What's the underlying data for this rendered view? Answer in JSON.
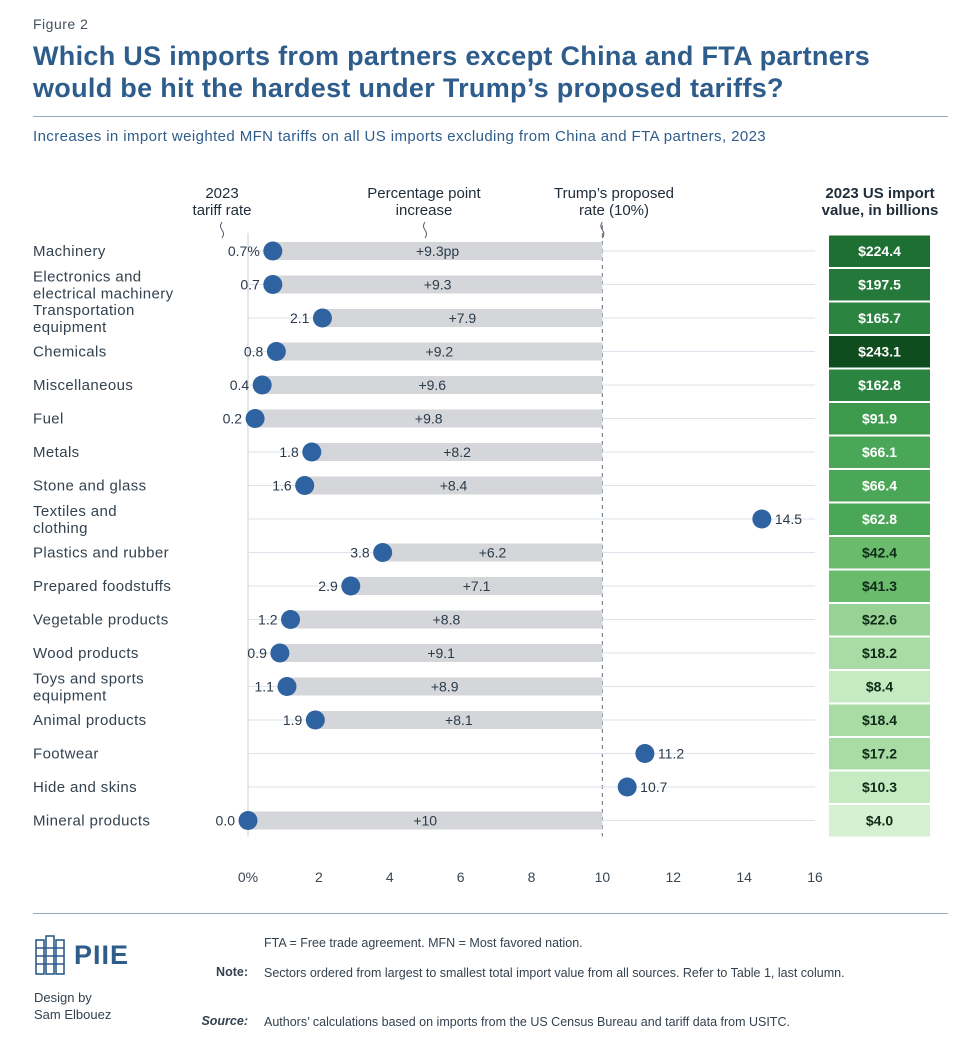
{
  "header": {
    "figure_label": "Figure 2",
    "title_line1": "Which US imports from partners except China and FTA partners",
    "title_line2": "would be hit the hardest under Trump’s proposed tariffs?",
    "subtitle": "Increases in import weighted MFN tariffs on all US imports excluding from China and FTA partners, 2023"
  },
  "columns": {
    "tariff_line1": "2023",
    "tariff_line2": "tariff rate",
    "increase_line1": "Percentage point",
    "increase_line2": "increase",
    "proposed_line1": "Trump’s proposed",
    "proposed_line2": "rate (10%)",
    "import_line1": "2023 US import",
    "import_line2": "value, in billions"
  },
  "chart_data": {
    "type": "dumbbell",
    "xlim": [
      0,
      16
    ],
    "x_ticks": [
      0,
      2,
      4,
      6,
      8,
      10,
      12,
      14,
      16
    ],
    "x_tick_labels": [
      "0%",
      "2",
      "4",
      "6",
      "8",
      "10",
      "12",
      "14",
      "16"
    ],
    "proposed_rate": 10,
    "categories": [
      {
        "label": [
          "Machinery"
        ],
        "rate": 0.7,
        "rate_label": "0.7%",
        "increase": 9.3,
        "increase_label": "+9.3pp",
        "import_value": 224.4,
        "import_label": "$224.4",
        "import_color": "#1e6f32"
      },
      {
        "label": [
          "Electronics and",
          "electrical machinery"
        ],
        "rate": 0.7,
        "rate_label": "0.7",
        "increase": 9.3,
        "increase_label": "+9.3",
        "import_value": 197.5,
        "import_label": "$197.5",
        "import_color": "#24793a"
      },
      {
        "label": [
          "Transportation",
          "equipment"
        ],
        "rate": 2.1,
        "rate_label": "2.1",
        "increase": 7.9,
        "increase_label": "+7.9",
        "import_value": 165.7,
        "import_label": "$165.7",
        "import_color": "#2b8541"
      },
      {
        "label": [
          "Chemicals"
        ],
        "rate": 0.8,
        "rate_label": "0.8",
        "increase": 9.2,
        "increase_label": "+9.2",
        "import_value": 243.1,
        "import_label": "$243.1",
        "import_color": "#0f4d1f"
      },
      {
        "label": [
          "Miscellaneous"
        ],
        "rate": 0.4,
        "rate_label": "0.4",
        "increase": 9.6,
        "increase_label": "+9.6",
        "import_value": 162.8,
        "import_label": "$162.8",
        "import_color": "#2b8541"
      },
      {
        "label": [
          "Fuel"
        ],
        "rate": 0.2,
        "rate_label": "0.2",
        "increase": 9.8,
        "increase_label": "+9.8",
        "import_value": 91.9,
        "import_label": "$91.9",
        "import_color": "#3d9a4c"
      },
      {
        "label": [
          "Metals"
        ],
        "rate": 1.8,
        "rate_label": "1.8",
        "increase": 8.2,
        "increase_label": "+8.2",
        "import_value": 66.1,
        "import_label": "$66.1",
        "import_color": "#4aa757"
      },
      {
        "label": [
          "Stone and glass"
        ],
        "rate": 1.6,
        "rate_label": "1.6",
        "increase": 8.4,
        "increase_label": "+8.4",
        "import_value": 66.4,
        "import_label": "$66.4",
        "import_color": "#4aa757"
      },
      {
        "label": [
          "Textiles and",
          "clothing"
        ],
        "rate": 14.5,
        "rate_label": "14.5",
        "increase": null,
        "increase_label": "",
        "import_value": 62.8,
        "import_label": "$62.8",
        "import_color": "#4aa757"
      },
      {
        "label": [
          "Plastics and rubber"
        ],
        "rate": 3.8,
        "rate_label": "3.8",
        "increase": 6.2,
        "increase_label": "+6.2",
        "import_value": 42.4,
        "import_label": "$42.4",
        "import_color": "#6bbb6d"
      },
      {
        "label": [
          "Prepared foodstuffs"
        ],
        "rate": 2.9,
        "rate_label": "2.9",
        "increase": 7.1,
        "increase_label": "+7.1",
        "import_value": 41.3,
        "import_label": "$41.3",
        "import_color": "#6bbb6d"
      },
      {
        "label": [
          "Vegetable products"
        ],
        "rate": 1.2,
        "rate_label": "1.2",
        "increase": 8.8,
        "increase_label": "+8.8",
        "import_value": 22.6,
        "import_label": "$22.6",
        "import_color": "#98d294"
      },
      {
        "label": [
          "Wood products"
        ],
        "rate": 0.9,
        "rate_label": "0.9",
        "increase": 9.1,
        "increase_label": "+9.1",
        "import_value": 18.2,
        "import_label": "$18.2",
        "import_color": "#a9dca5"
      },
      {
        "label": [
          "Toys and sports",
          "equipment"
        ],
        "rate": 1.1,
        "rate_label": "1.1",
        "increase": 8.9,
        "increase_label": "+8.9",
        "import_value": 8.4,
        "import_label": "$8.4",
        "import_color": "#c6ebc2"
      },
      {
        "label": [
          "Animal products"
        ],
        "rate": 1.9,
        "rate_label": "1.9",
        "increase": 8.1,
        "increase_label": "+8.1",
        "import_value": 18.4,
        "import_label": "$18.4",
        "import_color": "#a9dca5"
      },
      {
        "label": [
          "Footwear"
        ],
        "rate": 11.2,
        "rate_label": "11.2",
        "increase": null,
        "increase_label": "",
        "import_value": 17.2,
        "import_label": "$17.2",
        "import_color": "#a9dca5"
      },
      {
        "label": [
          "Hide and skins"
        ],
        "rate": 10.7,
        "rate_label": "10.7",
        "increase": null,
        "increase_label": "",
        "import_value": 10.3,
        "import_label": "$10.3",
        "import_color": "#c6ebc2"
      },
      {
        "label": [
          "Mineral products"
        ],
        "rate": 0.0,
        "rate_label": "0.0",
        "increase": 10,
        "increase_label": "+10",
        "import_value": 4.0,
        "import_label": "$4.0",
        "import_color": "#d6f1d2"
      }
    ]
  },
  "footer": {
    "logo_text": "PIIE",
    "design_line1": "Design by",
    "design_line2": "Sam Elbouez",
    "abbrev": "FTA = Free trade agreement. MFN = Most favored nation.",
    "note_key": "Note:",
    "note_text": "Sectors ordered from largest to smallest total import value from all sources. Refer to Table 1, last column.",
    "source_key": "Source:",
    "source_text": "Authors’ calculations based on imports from the US Census Bureau and tariff data from USITC."
  },
  "colors": {
    "title": "#2e5d8c",
    "dot": "#2f62a0",
    "bar": "#d4d6d9"
  }
}
